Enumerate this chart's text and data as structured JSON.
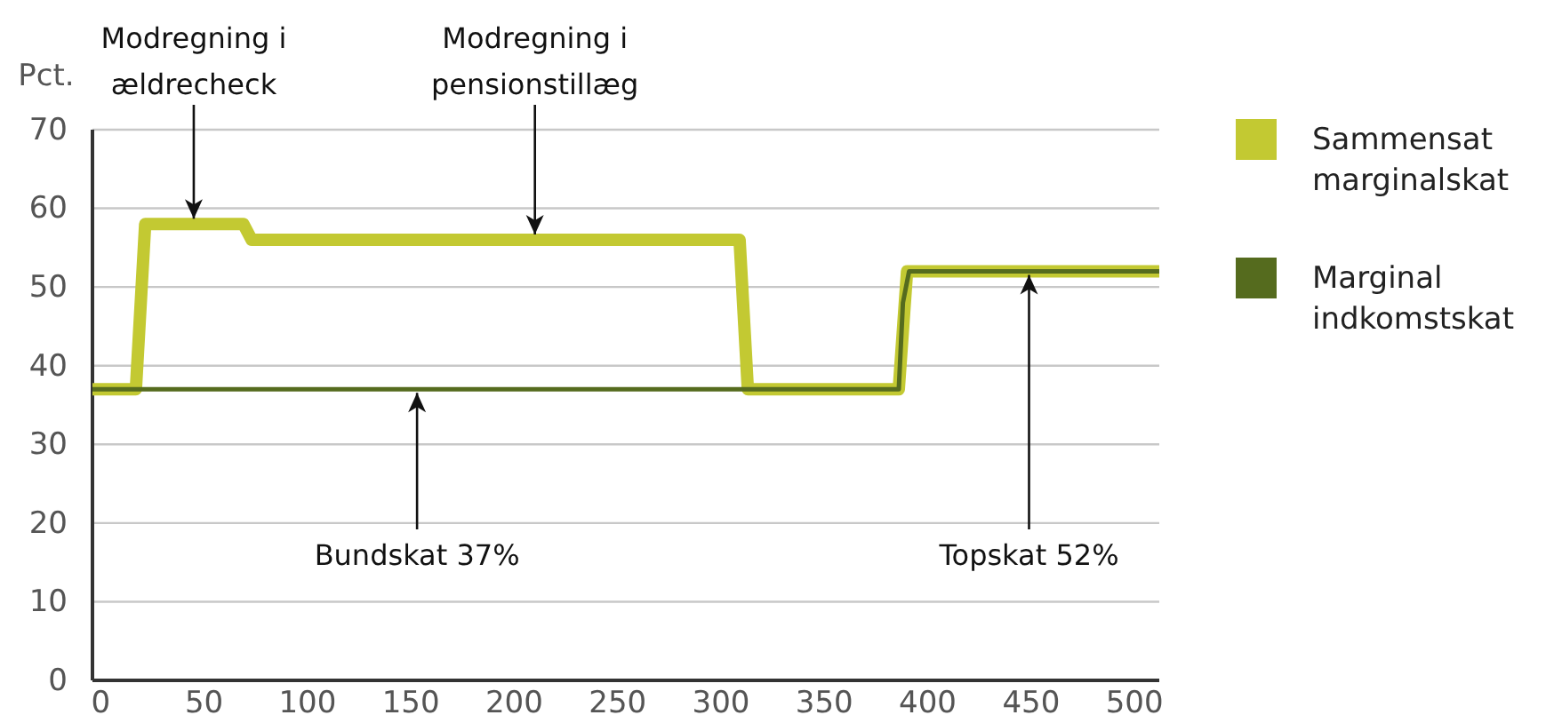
{
  "chart_data": {
    "type": "line",
    "ylabel": "Pct.",
    "xlim": [
      -4,
      512
    ],
    "xticks": [
      0,
      50,
      100,
      150,
      200,
      250,
      300,
      350,
      400,
      450,
      500
    ],
    "ylim": [
      0,
      70
    ],
    "yticks": [
      0,
      10,
      20,
      30,
      40,
      50,
      60,
      70
    ],
    "grid": "y",
    "legend": "right",
    "marker": "none",
    "line_style": "solid",
    "series": [
      {
        "name": "Sammensat marginalskat",
        "color": "#c3c932",
        "x": [
          -4,
          17,
          21.5,
          69,
          73,
          309,
          313,
          386,
          390,
          512
        ],
        "values": [
          37,
          37,
          58,
          58,
          56,
          56,
          37,
          37,
          52,
          52
        ]
      },
      {
        "name": "Marginal indkomstskat",
        "color": "#556b1e",
        "x": [
          -4,
          386,
          388,
          391,
          512
        ],
        "values": [
          37,
          37,
          48,
          52,
          52
        ]
      }
    ],
    "annotations": [
      {
        "text": "Modregning i ældrecheck",
        "x": 45,
        "y": 58
      },
      {
        "text": "Modregning i pensionstillæg",
        "x": 210,
        "y": 56
      },
      {
        "text": "Bundskat 37%",
        "x": 153,
        "y": 37
      },
      {
        "text": "Topskat 52%",
        "x": 449,
        "y": 52
      }
    ]
  }
}
